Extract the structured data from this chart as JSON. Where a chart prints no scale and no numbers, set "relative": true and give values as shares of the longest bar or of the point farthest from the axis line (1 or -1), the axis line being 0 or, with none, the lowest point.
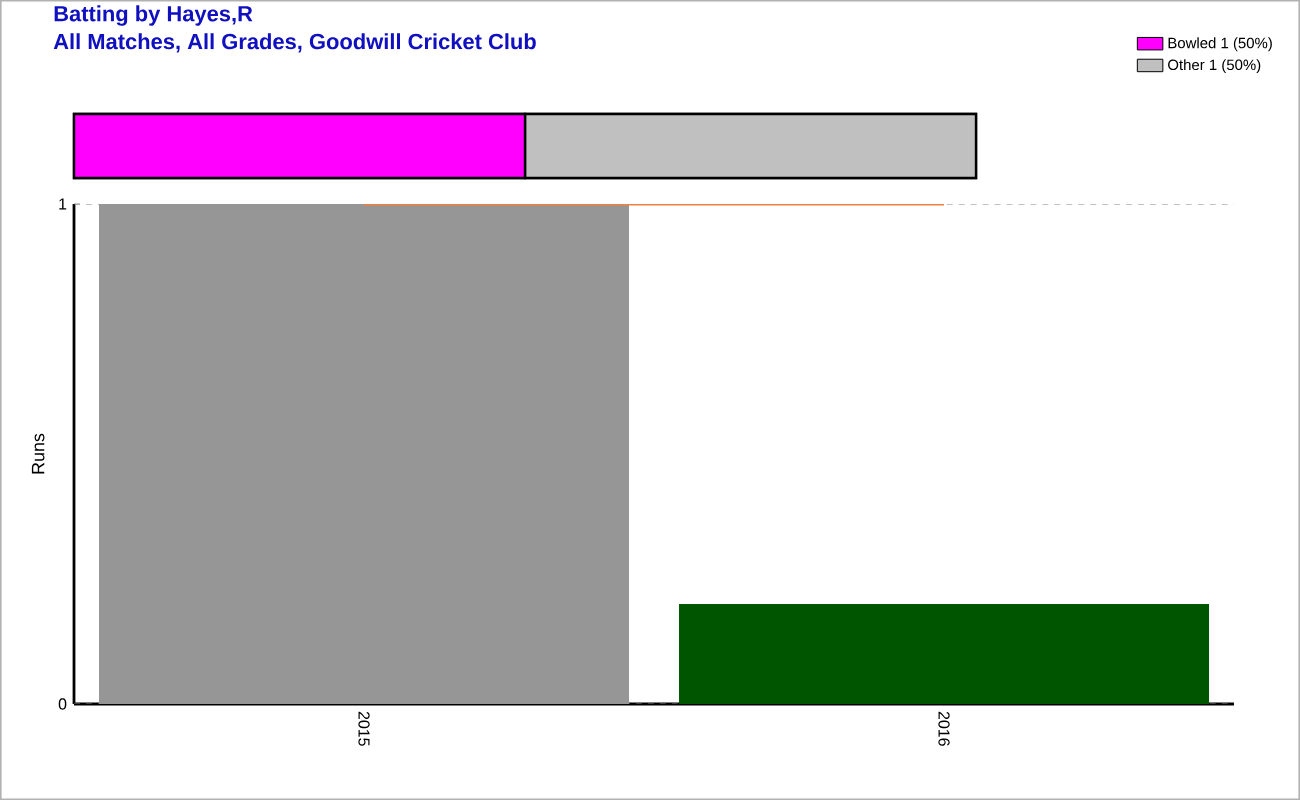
{
  "chart_data": [
    {
      "type": "bar",
      "title": "Batting by Hayes,R",
      "subtitle": "All Matches, All Grades, Goodwill Cricket Club",
      "orientation": "horizontal",
      "stacked": true,
      "relative": true,
      "categories": [
        null
      ],
      "legend": "top right",
      "series": [
        {
          "name": "Bowled 1 (50%)",
          "color": "#ff00ff",
          "values": [
            0.5
          ]
        },
        {
          "name": "Other 1 (50%)",
          "color": "#c0c0c0",
          "values": [
            0.5
          ]
        }
      ]
    },
    {
      "type": "bar",
      "ylabel": "Runs",
      "categories": [
        "2015",
        "2016"
      ],
      "ylim": [
        0,
        1
      ],
      "yticks": [
        0,
        1
      ],
      "grid": "y",
      "series": [
        {
          "type": "bar",
          "colors": [
            "#969696",
            "#005500"
          ],
          "values": [
            1,
            0.2
          ]
        },
        {
          "type": "line",
          "color": "#f08040",
          "values": [
            1,
            1
          ]
        }
      ]
    }
  ]
}
